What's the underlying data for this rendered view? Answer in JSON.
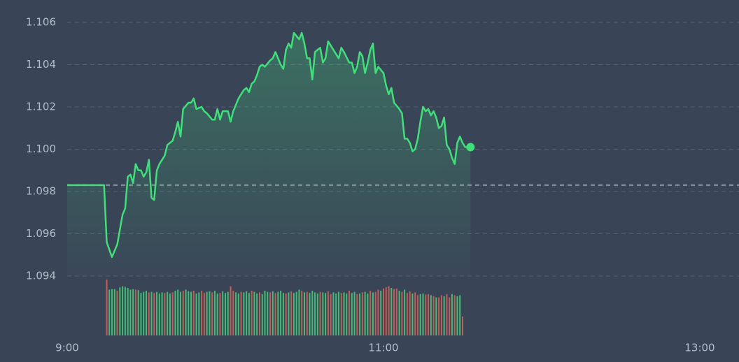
{
  "chart_data": {
    "type": "line",
    "x": [
      0,
      14,
      15,
      17,
      19,
      21,
      22,
      23,
      24,
      25,
      26,
      27,
      28,
      29,
      30,
      31,
      32,
      33,
      34,
      35,
      37,
      38,
      40,
      41,
      42,
      43,
      44,
      46,
      47,
      48,
      49,
      51,
      52,
      53,
      55,
      56,
      57,
      58,
      59,
      61,
      62,
      63,
      64,
      65,
      67,
      68,
      69,
      70,
      71,
      72,
      73,
      74,
      75,
      77,
      78,
      79,
      80,
      81,
      82,
      83,
      84,
      85,
      86,
      88,
      89,
      90,
      91,
      92,
      93,
      94,
      96,
      97,
      98,
      99,
      100,
      101,
      103,
      104,
      105,
      107,
      108,
      109,
      110,
      111,
      112,
      113,
      114,
      115,
      116,
      117,
      118,
      120,
      121,
      122,
      123,
      124,
      126,
      127,
      128,
      129,
      130,
      131,
      132,
      133,
      134,
      135,
      136,
      137,
      138,
      139,
      140,
      141,
      142,
      143,
      144,
      145,
      146,
      147,
      148,
      149,
      150,
      151,
      152,
      153
    ],
    "series": [
      {
        "color": "#3ee07a",
        "values": [
          1.0983,
          1.0983,
          1.0956,
          1.0949,
          1.0955,
          1.0969,
          1.0972,
          1.0987,
          1.0988,
          1.0984,
          1.0993,
          1.099,
          1.099,
          1.0987,
          1.0989,
          1.0995,
          1.0977,
          1.0976,
          1.099,
          1.0993,
          1.0997,
          1.1002,
          1.1004,
          1.1008,
          1.1013,
          1.1006,
          1.1019,
          1.1022,
          1.1022,
          1.1024,
          1.1019,
          1.102,
          1.1018,
          1.1017,
          1.1014,
          1.1014,
          1.1019,
          1.1014,
          1.1018,
          1.1018,
          1.1013,
          1.1018,
          1.1021,
          1.1024,
          1.1028,
          1.1029,
          1.1027,
          1.1031,
          1.1032,
          1.1035,
          1.1039,
          1.104,
          1.1039,
          1.1042,
          1.1043,
          1.1046,
          1.1043,
          1.104,
          1.1038,
          1.1047,
          1.105,
          1.1048,
          1.1055,
          1.1052,
          1.1055,
          1.105,
          1.1043,
          1.1043,
          1.1033,
          1.1046,
          1.1048,
          1.1041,
          1.1043,
          1.1051,
          1.1049,
          1.1047,
          1.1043,
          1.1048,
          1.1046,
          1.1041,
          1.1041,
          1.1036,
          1.1039,
          1.1046,
          1.1044,
          1.1036,
          1.1041,
          1.1047,
          1.105,
          1.1036,
          1.1039,
          1.1036,
          1.103,
          1.1026,
          1.1029,
          1.1022,
          1.1019,
          1.1017,
          1.1005,
          1.1005,
          1.1003,
          1.0999,
          1.1,
          1.1005,
          1.1013,
          1.102,
          1.1018,
          1.1019,
          1.1016,
          1.1018,
          1.1015,
          1.101,
          1.1011,
          1.1015,
          1.1002,
          1.1,
          1.0996,
          1.0993,
          1.1003,
          1.1006,
          1.1003,
          1.1001,
          1.1001,
          1.1001
        ]
      }
    ],
    "reference_line": 1.0983,
    "xlim": [
      0,
      240
    ],
    "xticks": [
      {
        "value": 0,
        "label": "9:00"
      },
      {
        "value": 120,
        "label": "11:00"
      },
      {
        "value": 240,
        "label": "13:00"
      }
    ],
    "ylim": [
      1.094,
      1.106
    ],
    "yticks": [
      1.094,
      1.096,
      1.098,
      {
        "value": 1.1,
        "label": "1.100"
      },
      1.102,
      1.104,
      1.106
    ],
    "grid": true,
    "volume": {
      "ylim": [
        0,
        100
      ],
      "x": [
        15,
        16,
        17,
        18,
        19,
        20,
        21,
        22,
        23,
        24,
        25,
        26,
        27,
        28,
        29,
        30,
        31,
        32,
        33,
        34,
        35,
        36,
        37,
        38,
        39,
        40,
        41,
        42,
        43,
        44,
        45,
        46,
        47,
        48,
        49,
        50,
        51,
        52,
        53,
        54,
        55,
        56,
        57,
        58,
        59,
        60,
        61,
        62,
        63,
        64,
        65,
        66,
        67,
        68,
        69,
        70,
        71,
        72,
        73,
        74,
        75,
        76,
        77,
        78,
        79,
        80,
        81,
        82,
        83,
        84,
        85,
        86,
        87,
        88,
        89,
        90,
        91,
        92,
        93,
        94,
        95,
        96,
        97,
        98,
        99,
        100,
        101,
        102,
        103,
        104,
        105,
        106,
        107,
        108,
        109,
        110,
        111,
        112,
        113,
        114,
        115,
        116,
        117,
        118,
        119,
        120,
        121,
        122,
        123,
        124,
        125,
        126,
        127,
        128,
        129,
        130,
        131,
        132,
        133,
        134,
        135,
        136,
        137,
        138,
        139,
        140,
        141,
        142,
        143,
        144,
        145,
        146,
        147,
        148,
        149,
        150
      ],
      "values": [
        100,
        82,
        83,
        83,
        80,
        86,
        88,
        87,
        85,
        82,
        83,
        82,
        81,
        76,
        78,
        80,
        77,
        78,
        76,
        78,
        75,
        77,
        76,
        78,
        75,
        77,
        80,
        82,
        78,
        80,
        82,
        79,
        78,
        80,
        75,
        77,
        80,
        76,
        78,
        79,
        77,
        80,
        75,
        76,
        79,
        76,
        78,
        88,
        80,
        77,
        75,
        78,
        77,
        79,
        76,
        80,
        78,
        75,
        77,
        74,
        80,
        78,
        77,
        79,
        76,
        78,
        80,
        76,
        75,
        77,
        79,
        76,
        78,
        82,
        80,
        77,
        78,
        76,
        80,
        77,
        75,
        78,
        77,
        76,
        79,
        74,
        77,
        75,
        78,
        76,
        77,
        75,
        80,
        76,
        78,
        74,
        75,
        77,
        78,
        75,
        80,
        77,
        78,
        82,
        80,
        84,
        86,
        88,
        85,
        83,
        84,
        80,
        78,
        82,
        76,
        79,
        75,
        77,
        72,
        74,
        75,
        73,
        74,
        72,
        70,
        68,
        68,
        72,
        70,
        74,
        68,
        74,
        72,
        70,
        72,
        34
      ],
      "colors": [
        "#c75b57",
        "#3fbf74",
        "#3fbf74",
        "#3fbf74",
        "#c75b57",
        "#3fbf74",
        "#3fbf74",
        "#3fbf74",
        "#3fbf74",
        "#3fbf74",
        "#3fbf74",
        "#c75b57",
        "#3fbf74",
        "#3fbf74",
        "#3fbf74",
        "#3fbf74",
        "#c75b57",
        "#3fbf74",
        "#c75b57",
        "#3fbf74",
        "#3fbf74",
        "#3fbf74",
        "#c75b57",
        "#3fbf74",
        "#3fbf74",
        "#c75b57",
        "#3fbf74",
        "#3fbf74",
        "#3fbf74",
        "#c75b57",
        "#3fbf74",
        "#3fbf74",
        "#3fbf74",
        "#c75b57",
        "#3fbf74",
        "#3fbf74",
        "#c75b57",
        "#c75b57",
        "#3fbf74",
        "#3fbf74",
        "#c75b57",
        "#3fbf74",
        "#3fbf74",
        "#c75b57",
        "#3fbf74",
        "#3fbf74",
        "#3fbf74",
        "#c75b57",
        "#c75b57",
        "#3fbf74",
        "#3fbf74",
        "#c75b57",
        "#3fbf74",
        "#3fbf74",
        "#3fbf74",
        "#c75b57",
        "#3fbf74",
        "#3fbf74",
        "#c75b57",
        "#3fbf74",
        "#3fbf74",
        "#3fbf74",
        "#c75b57",
        "#3fbf74",
        "#c75b57",
        "#3fbf74",
        "#3fbf74",
        "#3fbf74",
        "#c75b57",
        "#3fbf74",
        "#c75b57",
        "#3fbf74",
        "#3fbf74",
        "#3fbf74",
        "#c75b57",
        "#3fbf74",
        "#c75b57",
        "#3fbf74",
        "#3fbf74",
        "#3fbf74",
        "#3fbf74",
        "#c75b57",
        "#3fbf74",
        "#3fbf74",
        "#c75b57",
        "#c75b57",
        "#3fbf74",
        "#3fbf74",
        "#3fbf74",
        "#c75b57",
        "#3fbf74",
        "#3fbf74",
        "#c75b57",
        "#3fbf74",
        "#3fbf74",
        "#c75b57",
        "#3fbf74",
        "#c75b57",
        "#3fbf74",
        "#3fbf74",
        "#c75b57",
        "#3fbf74",
        "#c75b57",
        "#c75b57",
        "#3fbf74",
        "#c75b57",
        "#c75b57",
        "#c75b57",
        "#3fbf74",
        "#c75b57",
        "#c75b57",
        "#3fbf74",
        "#c75b57",
        "#3fbf74",
        "#c75b57",
        "#c75b57",
        "#3fbf74",
        "#c75b57",
        "#c75b57",
        "#3fbf74",
        "#3fbf74",
        "#c75b57",
        "#c75b57",
        "#3fbf74",
        "#c75b57",
        "#3fbf74",
        "#c75b57",
        "#c75b57",
        "#3fbf74",
        "#c75b57",
        "#c75b57",
        "#3fbf74",
        "#c75b57",
        "#3fbf74",
        "#3fbf74",
        "#c75b57"
      ]
    }
  }
}
